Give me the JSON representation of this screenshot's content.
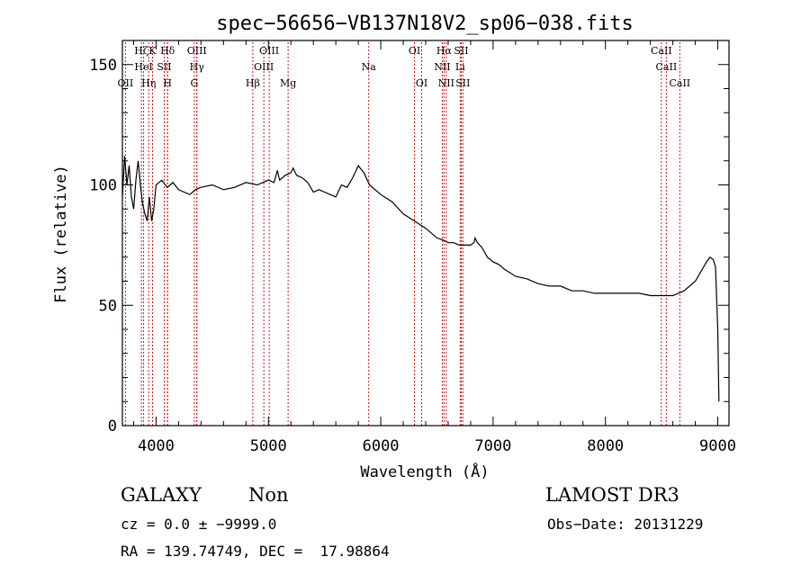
{
  "chart_data": {
    "type": "line",
    "title": "spec−56656−VB137N18V2_sp06−038.fits",
    "xlabel": "Wavelength (Å)",
    "ylabel": "Flux (relative)",
    "xlim": [
      3700,
      9100
    ],
    "ylim": [
      0,
      160
    ],
    "x_ticks": [
      4000,
      5000,
      6000,
      7000,
      8000,
      9000
    ],
    "y_ticks": [
      0,
      50,
      100,
      150
    ],
    "grid": false,
    "series": [
      {
        "x": [
          3700,
          3720,
          3740,
          3760,
          3780,
          3800,
          3820,
          3840,
          3860,
          3880,
          3900,
          3920,
          3940,
          3960,
          3980,
          4000,
          4050,
          4100,
          4150,
          4200,
          4250,
          4300,
          4350,
          4400,
          4500,
          4600,
          4700,
          4800,
          4900,
          5000,
          5050,
          5080,
          5100,
          5150,
          5200,
          5220,
          5250,
          5300,
          5350,
          5400,
          5450,
          5500,
          5550,
          5600,
          5650,
          5700,
          5750,
          5800,
          5850,
          5900,
          6000,
          6100,
          6200,
          6300,
          6400,
          6500,
          6560,
          6600,
          6650,
          6700,
          6750,
          6800,
          6830,
          6840,
          6860,
          6900,
          6950,
          7000,
          7050,
          7100,
          7200,
          7300,
          7400,
          7500,
          7600,
          7700,
          7800,
          7900,
          8000,
          8100,
          8200,
          8300,
          8400,
          8500,
          8600,
          8700,
          8800,
          8850,
          8900,
          8930,
          8960,
          8980,
          9000,
          9010
        ],
        "y": [
          95,
          112,
          100,
          108,
          95,
          90,
          102,
          110,
          100,
          92,
          88,
          85,
          95,
          85,
          90,
          100,
          102,
          99,
          101,
          98,
          97,
          96,
          98,
          99,
          100,
          98,
          99,
          101,
          100,
          102,
          101,
          106,
          102,
          104,
          105,
          107,
          104,
          103,
          101,
          97,
          98,
          97,
          96,
          95,
          100,
          99,
          103,
          108,
          105,
          100,
          96,
          93,
          88,
          85,
          82,
          78,
          77,
          76,
          76,
          75,
          75,
          75,
          76,
          78,
          76,
          74,
          70,
          68,
          67,
          65,
          62,
          61,
          59,
          58,
          58,
          56,
          56,
          55,
          55,
          55,
          55,
          55,
          54,
          54,
          54,
          56,
          60,
          64,
          68,
          70,
          69,
          66,
          40,
          10
        ]
      }
    ],
    "line_labels": [
      {
        "wavelength": 3727,
        "text": "OII",
        "row": 2
      },
      {
        "wavelength": 3869,
        "text": "Hζ",
        "row": 0
      },
      {
        "wavelength": 3889,
        "text": "HeI",
        "row": 1
      },
      {
        "wavelength": 3934,
        "text": "Hη",
        "row": 2
      },
      {
        "wavelength": 3968,
        "text": "K",
        "row": 0
      },
      {
        "wavelength": 4102,
        "text": "H",
        "row": 2
      },
      {
        "wavelength": 4072,
        "text": "SII",
        "row": 1
      },
      {
        "wavelength": 4102,
        "text": "Hδ",
        "row": 0
      },
      {
        "wavelength": 4340,
        "text": "G",
        "row": 2
      },
      {
        "wavelength": 4363,
        "text": "Hγ",
        "row": 1
      },
      {
        "wavelength": 4363,
        "text": "OIII",
        "row": 0
      },
      {
        "wavelength": 4861,
        "text": "Hβ",
        "row": 2
      },
      {
        "wavelength": 4959,
        "text": "OIII",
        "row": 1
      },
      {
        "wavelength": 5007,
        "text": "OIII",
        "row": 0
      },
      {
        "wavelength": 5175,
        "text": "Mg",
        "row": 2
      },
      {
        "wavelength": 5893,
        "text": "Na",
        "row": 1
      },
      {
        "wavelength": 6300,
        "text": "OI",
        "row": 0
      },
      {
        "wavelength": 6364,
        "text": "OI",
        "row": 2
      },
      {
        "wavelength": 6548,
        "text": "NII",
        "row": 1
      },
      {
        "wavelength": 6563,
        "text": "Hα",
        "row": 0
      },
      {
        "wavelength": 6583,
        "text": "NII",
        "row": 2
      },
      {
        "wavelength": 6707,
        "text": "Li",
        "row": 1
      },
      {
        "wavelength": 6716,
        "text": "SII",
        "row": 0
      },
      {
        "wavelength": 6731,
        "text": "SII",
        "row": 2
      },
      {
        "wavelength": 8498,
        "text": "CaII",
        "row": 0
      },
      {
        "wavelength": 8542,
        "text": "CaII",
        "row": 1
      },
      {
        "wavelength": 8662,
        "text": "CaII",
        "row": 2
      }
    ],
    "line_marker_color": "#cc0000",
    "curve_color": "#000000"
  },
  "info": {
    "class": "GALAXY",
    "subclass": "Non",
    "survey": "LAMOST DR3",
    "cz": "cz = 0.0 ± −9999.0",
    "obs_date": "Obs−Date: 20131229",
    "radec": "RA = 139.74749, DEC =  17.98864"
  }
}
